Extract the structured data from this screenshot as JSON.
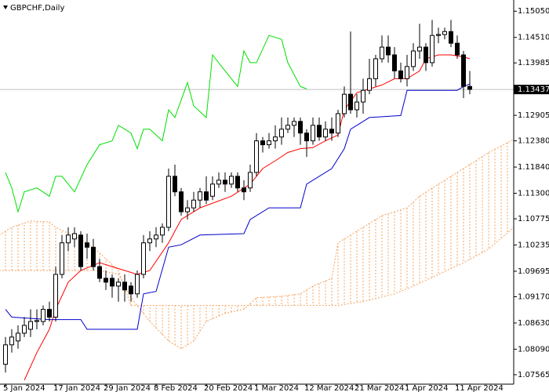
{
  "chart_data": {
    "type": "candlestick",
    "title": "GBPCHF,Daily",
    "x": [
      "5 Jan 2024",
      null,
      null,
      null,
      null,
      null,
      null,
      null,
      "17 Jan 2024",
      null,
      null,
      null,
      null,
      null,
      null,
      null,
      "29 Jan 2024",
      null,
      null,
      null,
      null,
      null,
      null,
      null,
      "8 Feb 2024",
      null,
      null,
      null,
      null,
      null,
      null,
      null,
      "20 Feb 2024",
      null,
      null,
      null,
      null,
      null,
      null,
      null,
      "1 Mar 2024",
      null,
      null,
      null,
      null,
      null,
      null,
      null,
      "12 Mar 2024",
      null,
      null,
      null,
      null,
      null,
      null,
      null,
      "21 Mar 2024",
      null,
      null,
      null,
      null,
      null,
      null,
      null,
      "1 Apr 2024",
      null,
      null,
      null,
      null,
      null,
      null,
      null,
      "11 Apr 2024",
      null,
      null
    ],
    "open": [
      1.0778,
      1.0818,
      1.0826,
      1.0842,
      1.085,
      1.0866,
      1.0866,
      1.0891,
      1.0875,
      1.0963,
      1.1028,
      1.1036,
      1.1044,
      1.1028,
      1.1019,
      1.0979,
      1.0955,
      1.0955,
      1.0939,
      1.0947,
      1.0939,
      1.0923,
      1.0963,
      1.1028,
      1.1036,
      1.1044,
      1.106,
      1.1165,
      1.1133,
      1.1092,
      1.11,
      1.1116,
      1.1133,
      1.1124,
      1.1149,
      1.1157,
      1.1149,
      1.1165,
      1.1141,
      1.1141,
      1.1173,
      1.1238,
      1.123,
      1.1238,
      1.1246,
      1.1262,
      1.127,
      1.1278,
      1.1254,
      1.1238,
      1.127,
      1.1246,
      1.1262,
      1.1254,
      1.1294,
      1.1334,
      1.1302,
      1.1318,
      1.1342,
      1.1366,
      1.1407,
      1.1431,
      1.1415,
      1.1382,
      1.1366,
      1.1391,
      1.1423,
      1.1431,
      1.1399,
      1.1455,
      1.1457,
      1.1463,
      1.1439,
      1.1415,
      1.135
    ],
    "high": [
      1.0834,
      1.085,
      1.0858,
      1.0875,
      1.0891,
      1.0891,
      1.0899,
      1.0907,
      1.0979,
      1.1044,
      1.106,
      1.106,
      1.1052,
      1.1047,
      1.1036,
      1.0995,
      1.0971,
      1.0963,
      1.0955,
      1.0963,
      1.0947,
      1.0971,
      1.1044,
      1.1052,
      1.106,
      1.1068,
      1.1181,
      1.1189,
      1.1141,
      1.1116,
      1.1133,
      1.1141,
      1.1165,
      1.1165,
      1.1173,
      1.1173,
      1.1173,
      1.1173,
      1.1157,
      1.1189,
      1.1254,
      1.1246,
      1.1254,
      1.127,
      1.1286,
      1.1286,
      1.1286,
      1.1286,
      1.1262,
      1.1286,
      1.1286,
      1.1278,
      1.1286,
      1.1302,
      1.135,
      1.1463,
      1.1334,
      1.1366,
      1.1407,
      1.1415,
      1.1455,
      1.1455,
      1.1431,
      1.1399,
      1.1415,
      1.1439,
      1.1479,
      1.1439,
      1.1487,
      1.1471,
      1.1471,
      1.1487,
      1.1455,
      1.1423,
      1.1382
    ],
    "low": [
      1.0761,
      1.0802,
      1.081,
      1.0834,
      1.0834,
      1.085,
      1.0858,
      1.0866,
      1.0866,
      1.0955,
      1.1011,
      1.1019,
      1.0971,
      1.0995,
      1.0971,
      1.0947,
      1.0931,
      1.0915,
      1.0907,
      1.0907,
      1.0907,
      1.0915,
      1.0955,
      1.1011,
      1.1019,
      1.1028,
      1.1052,
      1.1124,
      1.1084,
      1.1076,
      1.1092,
      1.11,
      1.1108,
      1.1116,
      1.1141,
      1.1133,
      1.1141,
      1.1133,
      1.1116,
      1.1133,
      1.1165,
      1.1214,
      1.1222,
      1.1222,
      1.123,
      1.1254,
      1.1246,
      1.123,
      1.1205,
      1.123,
      1.1238,
      1.1238,
      1.1238,
      1.1246,
      1.1286,
      1.1294,
      1.1286,
      1.1294,
      1.1334,
      1.135,
      1.1399,
      1.1399,
      1.1366,
      1.1358,
      1.135,
      1.1382,
      1.1407,
      1.1382,
      1.1391,
      1.1439,
      1.1447,
      1.1431,
      1.1407,
      1.1326,
      1.1334
    ],
    "close": [
      1.0818,
      1.0834,
      1.0842,
      1.0858,
      1.0866,
      1.0868,
      1.0891,
      1.0875,
      1.0963,
      1.1028,
      1.1044,
      1.1047,
      1.0979,
      1.1019,
      1.0979,
      1.0955,
      1.0947,
      1.0939,
      1.0947,
      1.0931,
      1.0923,
      1.0963,
      1.1028,
      1.1036,
      1.1044,
      1.106,
      1.1165,
      1.1133,
      1.1092,
      1.11,
      1.1116,
      1.1133,
      1.1116,
      1.1149,
      1.1157,
      1.1149,
      1.1165,
      1.1141,
      1.1133,
      1.1173,
      1.1238,
      1.123,
      1.1238,
      1.1246,
      1.1262,
      1.127,
      1.1278,
      1.1254,
      1.1238,
      1.127,
      1.1246,
      1.1262,
      1.1254,
      1.1294,
      1.1334,
      1.1302,
      1.1318,
      1.1342,
      1.1366,
      1.1407,
      1.1431,
      1.1415,
      1.1382,
      1.1366,
      1.1391,
      1.1423,
      1.1431,
      1.1399,
      1.1455,
      1.1457,
      1.1463,
      1.1439,
      1.1415,
      1.135,
      1.1344
    ],
    "up_color": "#ffffff",
    "down_color": "#000000",
    "overlays": [
      {
        "color": "#ff0000",
        "x": [
          3,
          5,
          7,
          8,
          10,
          12,
          15,
          17,
          19,
          21,
          23,
          26,
          28,
          31,
          36,
          39,
          41,
          43,
          45,
          47,
          49,
          51,
          53,
          54,
          56,
          58,
          60,
          62,
          64,
          66,
          67,
          69,
          71,
          73,
          74
        ],
        "values": [
          1.0745,
          1.0802,
          1.085,
          1.0891,
          1.0947,
          1.0971,
          1.0987,
          1.0979,
          1.0971,
          1.0963,
          1.0971,
          1.1028,
          1.1076,
          1.11,
          1.1124,
          1.1149,
          1.1181,
          1.1197,
          1.1214,
          1.1222,
          1.1224,
          1.1238,
          1.125,
          1.1302,
          1.1337,
          1.1345,
          1.1353,
          1.1366,
          1.1366,
          1.1382,
          1.1407,
          1.1415,
          1.1415,
          1.1411,
          1.1407
        ]
      },
      {
        "color": "#0000cd",
        "x": [
          0,
          1,
          7,
          12,
          13,
          21,
          22,
          24,
          26,
          28,
          31,
          38,
          39,
          42,
          47,
          48,
          52,
          54,
          55,
          58,
          63,
          64,
          72,
          73,
          74
        ],
        "values": [
          1.0891,
          1.0875,
          1.087,
          1.087,
          1.085,
          1.085,
          1.0923,
          1.0928,
          1.1019,
          1.1024,
          1.1044,
          1.1047,
          1.1076,
          1.11,
          1.11,
          1.1149,
          1.1181,
          1.1222,
          1.1262,
          1.1286,
          1.129,
          1.1342,
          1.1342,
          1.135,
          1.1355
        ]
      },
      {
        "color": "#00e000",
        "x": [
          0,
          1,
          2,
          3,
          5,
          7,
          8,
          9,
          10,
          11,
          13,
          15,
          17,
          18,
          20,
          21,
          22,
          23,
          25,
          26,
          27,
          29,
          30,
          32,
          33,
          35,
          37,
          38,
          39,
          40,
          42,
          44,
          45,
          47,
          48
        ],
        "values": [
          1.1173,
          1.1141,
          1.1092,
          1.1133,
          1.1141,
          1.1124,
          1.1165,
          1.1165,
          1.1149,
          1.1133,
          1.1189,
          1.123,
          1.1238,
          1.127,
          1.1254,
          1.1222,
          1.1262,
          1.1262,
          1.1238,
          1.1302,
          1.1286,
          1.1358,
          1.131,
          1.1286,
          1.1415,
          1.1382,
          1.135,
          1.1423,
          1.1399,
          1.1399,
          1.1455,
          1.1447,
          1.1399,
          1.135,
          1.1345
        ]
      }
    ],
    "cloud": {
      "color": "#f4a460",
      "span_a": {
        "x": [
          -1,
          7,
          15,
          18,
          20,
          23,
          26,
          28,
          30,
          32,
          35,
          38,
          40,
          44,
          47,
          49,
          52,
          53,
          57,
          60,
          64,
          66,
          69,
          73,
          77,
          81
        ],
        "values": [
          1.0971,
          1.0971,
          1.0971,
          1.0963,
          1.0915,
          1.0866,
          1.0826,
          1.081,
          1.0826,
          1.0866,
          1.0883,
          1.0891,
          1.0915,
          1.0918,
          1.0923,
          1.0939,
          1.0955,
          1.1028,
          1.106,
          1.1084,
          1.11,
          1.1124,
          1.1149,
          1.1181,
          1.1214,
          1.1241
        ]
      },
      "span_b": {
        "x": [
          -1,
          1,
          4,
          7,
          8,
          12,
          14,
          16,
          18,
          20,
          40,
          53,
          57,
          62,
          65,
          69,
          73,
          77,
          81
        ],
        "values": [
          1.1044,
          1.106,
          1.1073,
          1.1071,
          1.106,
          1.1036,
          1.1019,
          1.0995,
          1.0971,
          1.0899,
          1.0899,
          1.0899,
          1.0907,
          1.0923,
          1.0939,
          1.0963,
          1.0987,
          1.1015,
          1.106
        ]
      }
    },
    "last_price": {
      "value": 1.13437,
      "label": "1.13437"
    },
    "ylim": [
      1.0737,
      1.1528
    ],
    "yticks": [
      {
        "value": 1.1505,
        "label": "1.15050"
      },
      {
        "value": 1.1451,
        "label": "1.14510"
      },
      {
        "value": 1.13985,
        "label": "1.13985"
      },
      {
        "value": 1.12905,
        "label": "1.12905"
      },
      {
        "value": 1.1238,
        "label": "1.12380"
      },
      {
        "value": 1.1184,
        "label": "1.11840"
      },
      {
        "value": 1.113,
        "label": "1.11300"
      },
      {
        "value": 1.10775,
        "label": "1.10775"
      },
      {
        "value": 1.10235,
        "label": "1.10235"
      },
      {
        "value": 1.09695,
        "label": "1.09695"
      },
      {
        "value": 1.0917,
        "label": "1.09170"
      },
      {
        "value": 1.0863,
        "label": "1.08630"
      },
      {
        "value": 1.0809,
        "label": "1.08090"
      },
      {
        "value": 1.07565,
        "label": "1.07565"
      }
    ],
    "grid": false
  }
}
